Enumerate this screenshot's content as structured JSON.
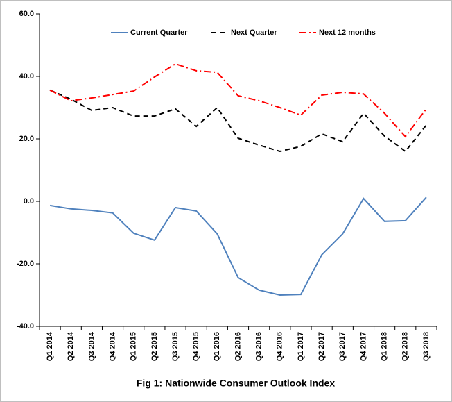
{
  "chart_data": {
    "type": "line",
    "title": "Fig 1: Nationwide Consumer Outlook Index",
    "categories": [
      "Q1 2014",
      "Q2 2014",
      "Q3 2014",
      "Q4 2014",
      "Q1 2015",
      "Q2 2015",
      "Q3 2015",
      "Q4 2015",
      "Q1 2016",
      "Q2 2016",
      "Q3 2016",
      "Q4 2016",
      "Q1 2017",
      "Q2 2017",
      "Q3 2017",
      "Q4 2017",
      "Q1 2018",
      "Q2 2018",
      "Q3 2018"
    ],
    "series": [
      {
        "name": "Current Quarter",
        "color": "#4f81bd",
        "line_style": "solid",
        "values": [
          -1.3,
          -2.4,
          -2.9,
          -3.7,
          -10.2,
          -12.4,
          -2.0,
          -3.1,
          -10.4,
          -24.4,
          -28.4,
          -30.0,
          -29.8,
          -17.1,
          -10.4,
          0.9,
          -6.4,
          -6.2,
          1.3
        ]
      },
      {
        "name": "Next Quarter",
        "color": "#000000",
        "line_style": "dashed",
        "values": [
          35.6,
          32.7,
          29.1,
          30.0,
          27.3,
          27.3,
          29.6,
          24.0,
          30.0,
          20.2,
          18.0,
          16.0,
          17.6,
          21.6,
          19.1,
          28.2,
          20.9,
          16.0,
          24.4
        ]
      },
      {
        "name": "Next 12 months",
        "color": "#ff0000",
        "line_style": "dashdot",
        "values": [
          35.6,
          32.2,
          33.1,
          34.2,
          35.3,
          39.8,
          44.0,
          41.8,
          41.3,
          33.8,
          32.2,
          30.0,
          27.6,
          34.0,
          34.9,
          34.4,
          28.2,
          20.7,
          29.6
        ]
      }
    ],
    "ylim": [
      -40,
      60
    ],
    "yticks": [
      {
        "value": -40,
        "label": "-40.0"
      },
      {
        "value": -20,
        "label": "-20.0"
      },
      {
        "value": 0,
        "label": "0.0"
      },
      {
        "value": 20,
        "label": "20.0"
      },
      {
        "value": 40,
        "label": "40.0"
      },
      {
        "value": 60,
        "label": "60.0"
      }
    ],
    "grid": false,
    "legend": "top"
  }
}
